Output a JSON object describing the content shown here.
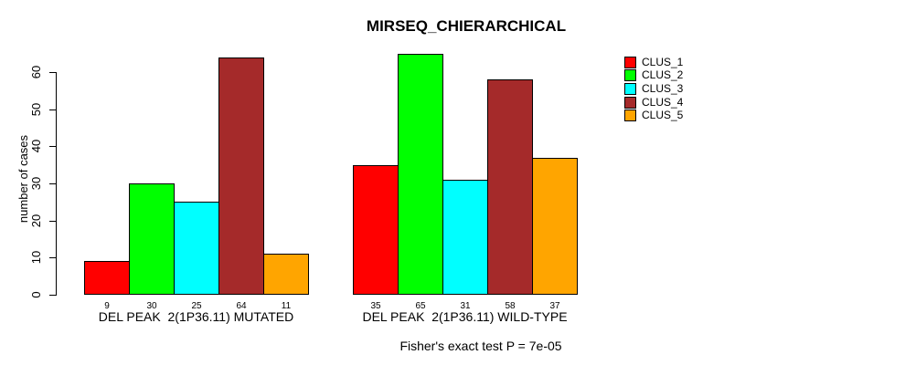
{
  "chart_data": {
    "type": "bar",
    "title": "MIRSEQ_CHIERARCHICAL",
    "ylabel": "number of cases",
    "xlabel": "",
    "annotation": "Fisher's exact test P = 7e-05",
    "ylim": [
      0,
      60
    ],
    "yticks": [
      0,
      10,
      20,
      30,
      40,
      50,
      60
    ],
    "grid": false,
    "value_labels_shown": true,
    "legend_position": "top-right",
    "categories": [
      "DEL PEAK  2(1P36.11) MUTATED",
      "DEL PEAK  2(1P36.11) WILD-TYPE"
    ],
    "series": [
      {
        "name": "CLUS_1",
        "color": "#FF0000",
        "values": [
          9,
          35
        ]
      },
      {
        "name": "CLUS_2",
        "color": "#00FF00",
        "values": [
          30,
          65
        ]
      },
      {
        "name": "CLUS_3",
        "color": "#00FFFF",
        "values": [
          25,
          31
        ]
      },
      {
        "name": "CLUS_4",
        "color": "#A52A2A",
        "values": [
          64,
          58
        ]
      },
      {
        "name": "CLUS_5",
        "color": "#FFA500",
        "values": [
          11,
          37
        ]
      }
    ],
    "axis_color": "#000000",
    "bar_border_color": "#000000",
    "background_color": "#FFFFFF"
  }
}
